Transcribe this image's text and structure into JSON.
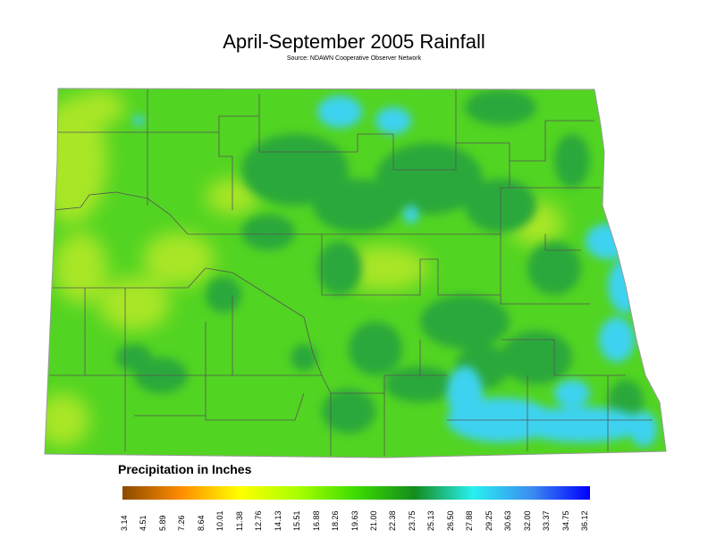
{
  "title": "April-September 2005 Rainfall",
  "subtitle": "Source: NDAWN Cooperative Observer Network",
  "legend": {
    "title": "Precipitation in Inches",
    "ticks": [
      "3.14",
      "4.51",
      "5.89",
      "7.26",
      "8.64",
      "10.01",
      "11.38",
      "12.76",
      "14.13",
      "15.51",
      "16.88",
      "18.26",
      "19.63",
      "21.00",
      "22.38",
      "23.75",
      "25.13",
      "26.50",
      "27.88",
      "29.25",
      "30.63",
      "32.00",
      "33.37",
      "34.75",
      "36.12"
    ],
    "colors": [
      "#8b4a00",
      "#ff8c00",
      "#ffff00",
      "#a8ff00",
      "#3cdc00",
      "#148c1e",
      "#28f0f0",
      "#3c8cf0",
      "#0000ff"
    ]
  },
  "map": {
    "base_color": "#52d422",
    "wet_color": "#2aa83a",
    "very_wet_color": "#3cd2f0",
    "dry_color": "#a8e628",
    "boundary_color": "#555555"
  }
}
